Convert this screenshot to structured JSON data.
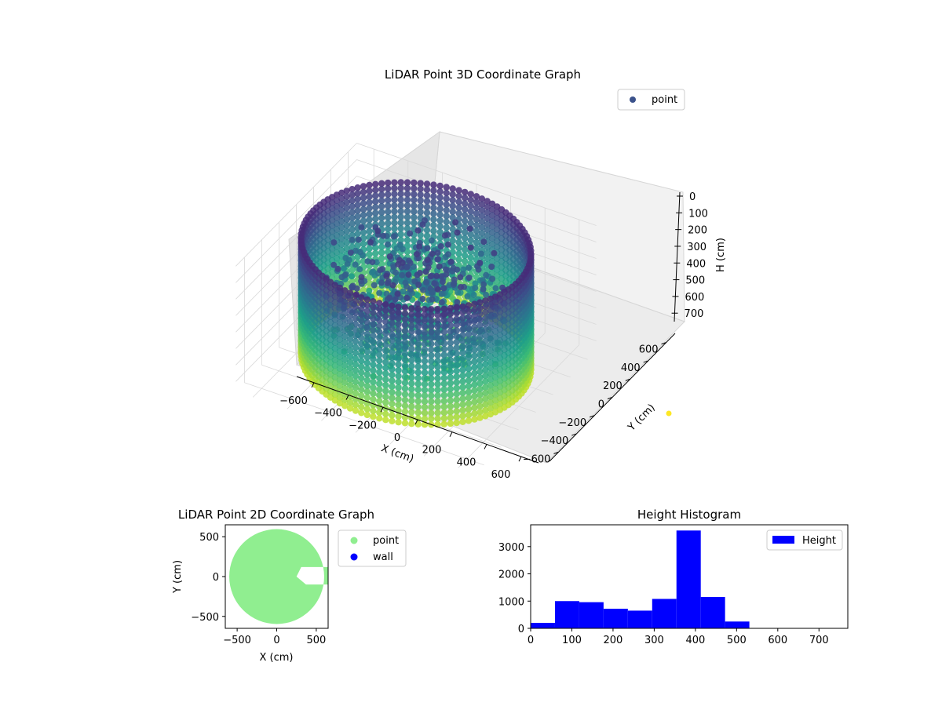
{
  "chart_data": [
    {
      "type": "scatter3d",
      "title": "LiDAR Point 3D Coordinate Graph",
      "xlabel": "X (cm)",
      "ylabel": "Y (cm)",
      "zlabel": "H (cm)",
      "xlim": [
        -700,
        700
      ],
      "ylim": [
        -700,
        700
      ],
      "zlim": [
        0,
        760
      ],
      "z_inverted": true,
      "x_ticks": [
        -600,
        -400,
        -200,
        0,
        200,
        400,
        600
      ],
      "y_ticks": [
        -600,
        -400,
        -200,
        0,
        200,
        400,
        600
      ],
      "z_ticks": [
        0,
        100,
        200,
        300,
        400,
        500,
        600,
        700
      ],
      "colormap": "viridis",
      "legend": {
        "entries": [
          {
            "label": "point",
            "color": "#3b528b"
          }
        ],
        "placement": "top-right"
      },
      "grid": true,
      "series": [
        {
          "name": "point",
          "shape": "cylindrical wall",
          "radius": 600,
          "height_min": 0,
          "height_max": 700,
          "interior": "scattered clutter points at heights ~100-550 cm near the center"
        }
      ],
      "outlier_marker": {
        "color": "#fde725",
        "y_text_near": "Y (cm)"
      }
    },
    {
      "type": "scatter",
      "title": "LiDAR Point 2D Coordinate Graph",
      "xlabel": "X (cm)",
      "ylabel": "Y (cm)",
      "xlim": [
        -650,
        650
      ],
      "ylim": [
        -650,
        650
      ],
      "x_ticks": [
        -500,
        0,
        500
      ],
      "y_ticks": [
        -500,
        0,
        500
      ],
      "legend": {
        "placement": "outside-right"
      },
      "series": [
        {
          "name": "point",
          "color": "#90ee90",
          "shape": "filled disk",
          "radius": 600,
          "gap": {
            "x_from": 250,
            "x_to": 650,
            "y_from": -100,
            "y_to": 120
          }
        },
        {
          "name": "wall",
          "color": "#0000ff"
        }
      ]
    },
    {
      "type": "bar",
      "title": "Height Histogram",
      "xlabel": "",
      "ylabel": "",
      "xlim": [
        0,
        770
      ],
      "ylim": [
        0,
        3800
      ],
      "x_ticks": [
        0,
        100,
        200,
        300,
        400,
        500,
        600,
        700
      ],
      "y_ticks": [
        0,
        1000,
        2000,
        3000
      ],
      "color": "#0000ff",
      "legend": {
        "entries": [
          {
            "label": "Height",
            "color": "#0000ff"
          }
        ],
        "placement": "top-right"
      },
      "bin_edges": [
        0,
        59,
        118,
        177,
        236,
        295,
        354,
        413,
        472,
        531,
        590,
        649,
        708,
        767
      ],
      "values": [
        200,
        1000,
        960,
        720,
        650,
        1080,
        3590,
        1150,
        250,
        0,
        0,
        0,
        0
      ]
    }
  ]
}
